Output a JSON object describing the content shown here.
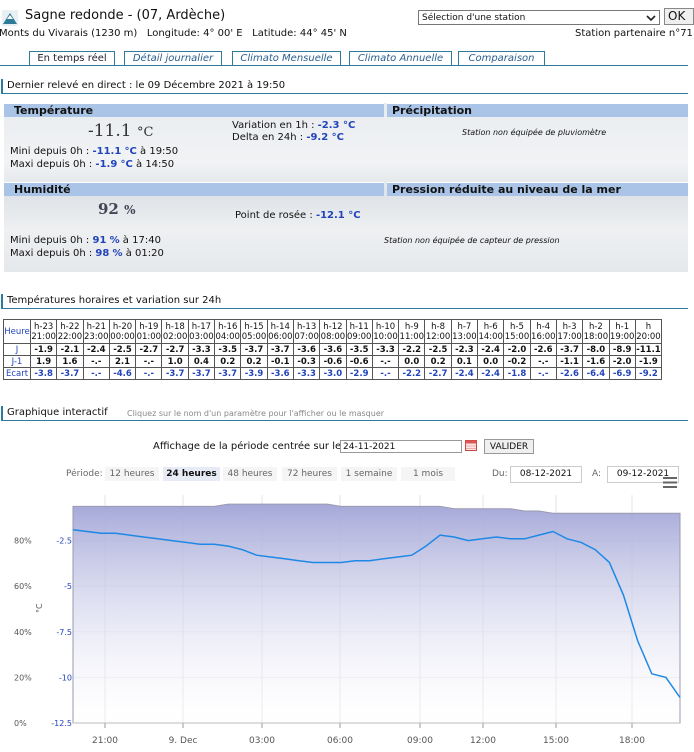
{
  "header": {
    "title": "Sagne redonde - (07, Ardèche)",
    "station_select": "Sélection d'une station",
    "ok": "OK",
    "location": "Monts du Vivarais (1230 m)   Longitude: 4° 00' E   Latitude: 44° 45' N",
    "partner": "Station partenaire n°71"
  },
  "tabs": [
    "En temps réel",
    "Détail journalier",
    "Climato Mensuelle",
    "Climato Annuelle",
    "Comparaison"
  ],
  "live": {
    "section_title": "Dernier relevé en direct : le 09 Décembre 2021 à 19:50",
    "temperature": {
      "header": "Température",
      "value": "-11.1",
      "unit": "°C",
      "min_prefix": "Mini depuis 0h : ",
      "min_value": "-11.1",
      "min_unit": "°C",
      "min_time": " à 19:50",
      "max_prefix": "Maxi depuis 0h : ",
      "max_value": "-1.9",
      "max_unit": "°C",
      "max_time": " à 14:50",
      "var1h_label": "Variation en 1h : ",
      "var1h_value": "-2.3 °C",
      "var24h_label": "Delta en 24h : ",
      "var24h_value": "-9.2 °C"
    },
    "precipitation": {
      "header": "Précipitation",
      "note": "Station non équipée de pluviomètre"
    },
    "humidity": {
      "header": "Humidité",
      "value": "92",
      "unit": "%",
      "min_prefix": "Mini depuis 0h : ",
      "min_value": "91",
      "min_unit": "%",
      "min_time": " à 17:40",
      "max_prefix": "Maxi depuis 0h : ",
      "max_value": "98",
      "max_unit": "%",
      "max_time": " à 01:20",
      "dew_label": "Point de rosée : ",
      "dew_value": "-12.1 °C"
    },
    "pressure": {
      "header": "Pression réduite au niveau de la mer",
      "note": "Station non équipée de capteur de pression"
    }
  },
  "hourly": {
    "section_title": "Températures horaires et variation sur 24h",
    "row_labels": [
      "Heure",
      "J",
      "J-1",
      "Ecart"
    ],
    "rel": [
      "h-23",
      "h-22",
      "h-21",
      "h-20",
      "h-19",
      "h-18",
      "h-17",
      "h-16",
      "h-15",
      "h-14",
      "h-13",
      "h-12",
      "h-11",
      "h-10",
      "h-9",
      "h-8",
      "h-7",
      "h-6",
      "h-5",
      "h-4",
      "h-3",
      "h-2",
      "h-1",
      "h"
    ],
    "clock": [
      "21:00",
      "22:00",
      "23:00",
      "00:00",
      "01:00",
      "02:00",
      "03:00",
      "04:00",
      "05:00",
      "06:00",
      "07:00",
      "08:00",
      "09:00",
      "10:00",
      "11:00",
      "12:00",
      "13:00",
      "14:00",
      "15:00",
      "16:00",
      "17:00",
      "18:00",
      "19:00",
      "20:00"
    ],
    "j": [
      "-1.9",
      "-2.1",
      "-2.4",
      "-2.5",
      "-2.7",
      "-2.7",
      "-3.3",
      "-3.5",
      "-3.7",
      "-3.7",
      "-3.6",
      "-3.6",
      "-3.5",
      "-3.3",
      "-2.2",
      "-2.5",
      "-2.3",
      "-2.4",
      "-2.0",
      "-2.6",
      "-3.7",
      "-8.0",
      "-8.9",
      "-11.1"
    ],
    "j1": [
      "1.9",
      "1.6",
      "-.-",
      "2.1",
      "-.-",
      "1.0",
      "0.4",
      "0.2",
      "0.2",
      "-0.1",
      "-0.3",
      "-0.6",
      "-0.6",
      "-.-",
      "0.0",
      "0.2",
      "0.1",
      "0.0",
      "-0.2",
      "-.-",
      "-1.1",
      "-1.6",
      "-2.0",
      "-1.9"
    ],
    "ecart": [
      "-3.8",
      "-3.7",
      "-.-",
      "-4.6",
      "-.-",
      "-3.7",
      "-3.7",
      "-3.7",
      "-3.9",
      "-3.6",
      "-3.3",
      "-3.0",
      "-2.9",
      "-.-",
      "-2.2",
      "-2.7",
      "-2.4",
      "-2.4",
      "-1.8",
      "-.-",
      "-2.6",
      "-6.4",
      "-6.9",
      "-9.2"
    ]
  },
  "chart_section": {
    "title": "Graphique interactif",
    "hint": "Cliquez sur le nom d'un paramètre pour l'afficher ou le masquer",
    "period_label": "Affichage de la période centrée sur le",
    "period_date": "24-11-2021",
    "validate": "VALIDER",
    "periode_label": "Période:",
    "period_buttons": [
      "12 heures",
      "24 heures",
      "48 heures",
      "72 heures",
      "1 semaine",
      "1 mois"
    ],
    "selected_period": "24 heures",
    "du_label": "Du:",
    "du_value": "08-12-2021",
    "a_label": "A:",
    "a_value": "09-12-2021",
    "colors": {
      "temperature": "#1e88e5",
      "humidity_fill": "#a5a8d8"
    }
  },
  "chart_data": {
    "type": "line",
    "y_left_ticks": [
      "80%",
      "60%",
      "40%",
      "20%",
      "0%"
    ],
    "y_right_ticks": [
      "-2.5",
      "-5",
      "-7.5",
      "-10",
      "-12.5"
    ],
    "y_right_unit": "°C",
    "x_ticks": [
      "21:00",
      "9. Dec",
      "03:00",
      "06:00",
      "09:00",
      "12:00",
      "15:00",
      "18:00"
    ],
    "series": [
      {
        "name": "Température",
        "unit": "°C",
        "values": [
          -1.9,
          -2.0,
          -2.1,
          -2.1,
          -2.2,
          -2.3,
          -2.4,
          -2.5,
          -2.6,
          -2.7,
          -2.7,
          -2.8,
          -3.0,
          -3.3,
          -3.4,
          -3.5,
          -3.6,
          -3.7,
          -3.7,
          -3.7,
          -3.6,
          -3.6,
          -3.5,
          -3.4,
          -3.3,
          -2.8,
          -2.2,
          -2.3,
          -2.5,
          -2.4,
          -2.3,
          -2.4,
          -2.4,
          -2.2,
          -2.0,
          -2.4,
          -2.6,
          -3.0,
          -3.7,
          -5.5,
          -8.0,
          -9.8,
          -10.0,
          -11.1
        ]
      },
      {
        "name": "Humidité",
        "unit": "%",
        "values": [
          95,
          95,
          95,
          95,
          95,
          95,
          95,
          95,
          95,
          95,
          95,
          96,
          96,
          96,
          96,
          96,
          96,
          96,
          96,
          95,
          95,
          95,
          95,
          95,
          95,
          95,
          95,
          94,
          94,
          94,
          94,
          94,
          93,
          93,
          92,
          92,
          92,
          92,
          92,
          92,
          92,
          92,
          92,
          92
        ]
      }
    ],
    "ylim_left": [
      0,
      100
    ],
    "ylim_right": [
      -12.5,
      0
    ]
  }
}
